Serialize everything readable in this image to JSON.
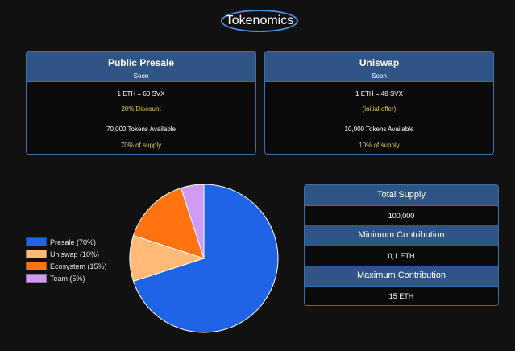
{
  "page_title": "Tokenomics",
  "presale": {
    "title": "Public Presale",
    "status": "Soon",
    "rate": "1 ETH = 60 SVX",
    "note": "20% Discount",
    "available": "70,000 Tokens Available",
    "supply_share": "70% of supply"
  },
  "uniswap": {
    "title": "Uniswap",
    "status": "Soon",
    "rate": "1 ETH = 48 SVX",
    "note": "(initial offer)",
    "available": "10,000 Tokens Available",
    "supply_share": "10% of supply"
  },
  "stats": {
    "total_supply_label": "Total Supply",
    "total_supply_value": "100,000",
    "min_label": "Minimum Contribution",
    "min_value": "0,1 ETH",
    "max_label": "Maximum Contribution",
    "max_value": "15 ETH"
  },
  "colors": {
    "accent": "#2f5587",
    "border": "#3b6ea5",
    "highlight": "#e0c64a"
  },
  "chart_data": {
    "type": "pie",
    "categories": [
      "Presale (70%)",
      "Uniswap (10%)",
      "Ecosystem (15%)",
      "Team (5%)"
    ],
    "values": [
      70,
      10,
      15,
      5
    ],
    "colors": [
      "#1f63e6",
      "#ffb978",
      "#ff7311",
      "#cf9bf5"
    ],
    "legend_position": "left"
  }
}
